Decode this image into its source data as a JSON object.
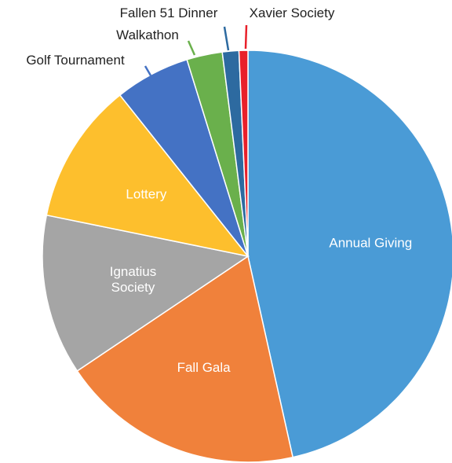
{
  "chart_data": {
    "type": "pie",
    "title": "",
    "start": "top",
    "direction": "clockwise",
    "slices": [
      {
        "name": "Annual Giving",
        "value": 46.5,
        "color": "#4a9bd6",
        "label_lines": [
          "Annual Giving"
        ],
        "label_position": "inside"
      },
      {
        "name": "Fall Gala",
        "value": 19.1,
        "color": "#f0813b",
        "label_lines": [
          "Fall Gala"
        ],
        "label_position": "inside"
      },
      {
        "name": "Ignatius Society",
        "value": 12.6,
        "color": "#a5a5a5",
        "label_lines": [
          "Ignatius",
          "Society"
        ],
        "label_position": "inside"
      },
      {
        "name": "Lottery",
        "value": 11.1,
        "color": "#fdbf2d",
        "label_lines": [
          "Lottery"
        ],
        "label_position": "inside"
      },
      {
        "name": "Golf Tournament",
        "value": 5.9,
        "color": "#4472c4",
        "label_lines": [
          "Golf Tournament"
        ],
        "label_position": "outside"
      },
      {
        "name": "Walkathon",
        "value": 2.8,
        "color": "#6ab04c",
        "label_lines": [
          "Walkathon"
        ],
        "label_position": "outside"
      },
      {
        "name": "Fallen 51 Dinner",
        "value": 1.3,
        "color": "#2d6aa0",
        "label_lines": [
          "Fallen 51 Dinner"
        ],
        "label_position": "outside"
      },
      {
        "name": "Xavier Society",
        "value": 0.7,
        "color": "#e8202a",
        "label_lines": [
          "Xavier Society"
        ],
        "label_position": "outside"
      }
    ]
  }
}
